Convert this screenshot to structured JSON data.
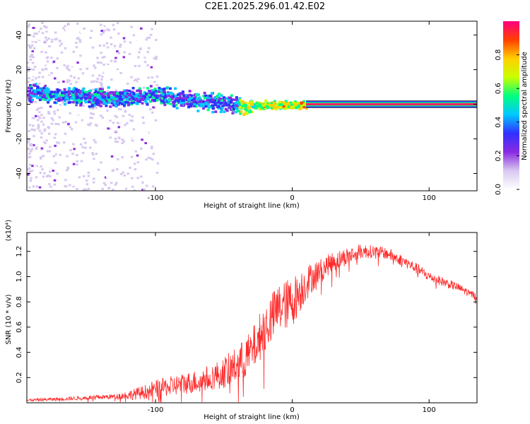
{
  "title": "C2E1.2025.296.01.42.E02",
  "chart_data": [
    {
      "type": "heatmap",
      "xlabel": "Height of straight line (km)",
      "ylabel": "Frequency (Hz)",
      "xlim": [
        -194,
        135
      ],
      "ylim": [
        -50,
        48
      ],
      "xticks": [
        -100,
        0,
        100
      ],
      "yticks": [
        -40,
        -20,
        0,
        20,
        40
      ],
      "colorbar": {
        "label": "Normalized spectral amplitude",
        "range": [
          0,
          1
        ],
        "ticks": [
          "0.0",
          "0.2",
          "0.4",
          "0.6",
          "0.8"
        ],
        "tick_values": [
          0.0,
          0.2,
          0.4,
          0.6,
          0.8
        ],
        "colors": [
          "#ffffff",
          "#d8c8f0",
          "#8a2be2",
          "#3030ff",
          "#00c8ff",
          "#00ff80",
          "#c8ff00",
          "#ffd000",
          "#ff4000",
          "#ff0080"
        ]
      },
      "description_features": {
        "main_band_center_hz": [
          {
            "x": -190,
            "y": 7
          },
          {
            "x": -160,
            "y": 5
          },
          {
            "x": -130,
            "y": 4
          },
          {
            "x": -100,
            "y": 6
          },
          {
            "x": -80,
            "y": 3
          },
          {
            "x": -60,
            "y": 2
          },
          {
            "x": -40,
            "y": 0
          },
          {
            "x": -20,
            "y": 0
          },
          {
            "x": 0,
            "y": 0
          },
          {
            "x": 10,
            "y": 0
          }
        ],
        "steady_line_hz": 0,
        "steady_line_start_km": 10
      }
    },
    {
      "type": "line",
      "xlabel": "Height of straight line (km)",
      "ylabel": "SNR (10 * v/v)",
      "y_multiplier": "(x10⁴)",
      "xlim": [
        -194,
        135
      ],
      "ylim": [
        0,
        1.35
      ],
      "xticks": [
        -100,
        0,
        100
      ],
      "yticks": [
        "0.2",
        "0.4",
        "0.6",
        "0.8",
        "1.0",
        "1.2"
      ],
      "ytick_values": [
        0.2,
        0.4,
        0.6,
        0.8,
        1.0,
        1.2
      ],
      "series": [
        {
          "name": "SNR",
          "color": "#ff2a2a",
          "envelope": {
            "x": [
              -194,
              -170,
              -150,
              -130,
              -120,
              -110,
              -100,
              -90,
              -80,
              -70,
              -60,
              -50,
              -40,
              -30,
              -20,
              -10,
              0,
              10,
              20,
              30,
              40,
              50,
              60,
              70,
              80,
              90,
              100,
              110,
              120,
              135
            ],
            "y": [
              0.02,
              0.03,
              0.04,
              0.05,
              0.06,
              0.08,
              0.11,
              0.13,
              0.15,
              0.17,
              0.2,
              0.24,
              0.3,
              0.4,
              0.6,
              0.75,
              0.8,
              0.95,
              1.05,
              1.12,
              1.16,
              1.2,
              1.2,
              1.18,
              1.13,
              1.07,
              1.0,
              0.96,
              0.92,
              0.84
            ]
          },
          "noise": {
            "x": [
              -194,
              -130,
              -100,
              -60,
              -40,
              -20,
              0,
              20,
              60,
              100,
              135
            ],
            "y": [
              0.01,
              0.02,
              0.07,
              0.1,
              0.15,
              0.2,
              0.2,
              0.09,
              0.05,
              0.04,
              0.03
            ]
          }
        }
      ]
    }
  ]
}
